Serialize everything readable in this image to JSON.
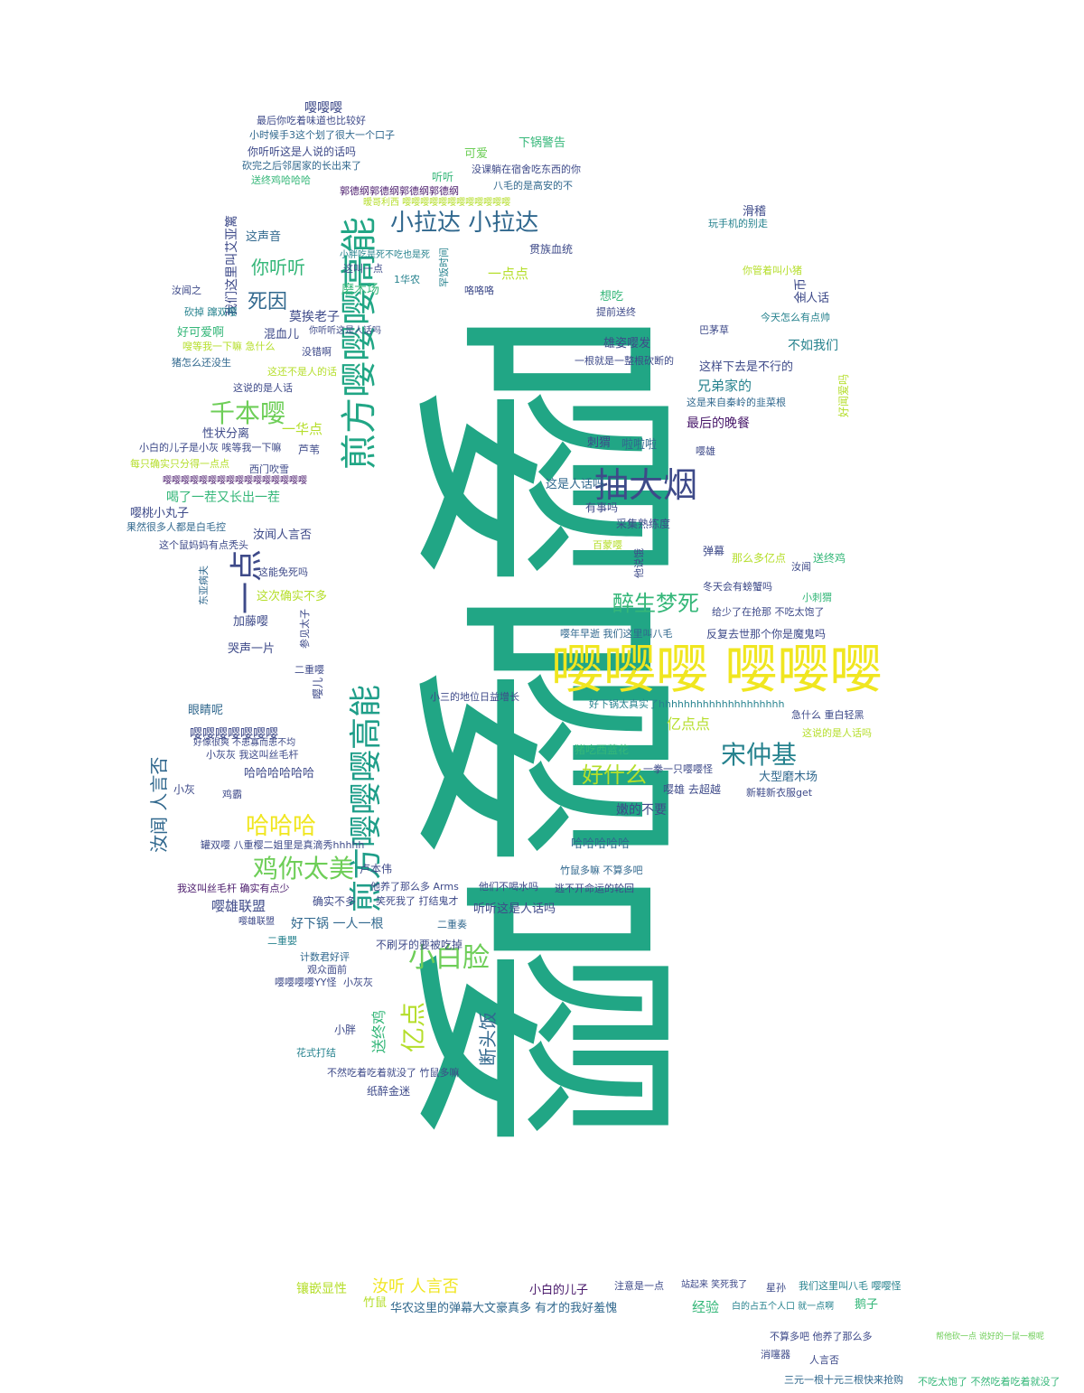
{
  "colors": {
    "background": "#ffffff",
    "palette": [
      "#21a685",
      "#f0e620",
      "#48186a",
      "#31688e",
      "#6ece58",
      "#3e4a89",
      "#b5de2b",
      "#26828e",
      "#1f9e89",
      "#35b779"
    ]
  },
  "wordcloud": {
    "words": [
      {
        "text": "嘤嘤嘤",
        "color": "#21a685"
      },
      {
        "text": "嘤嘤嘤 嘤嘤嘤",
        "color": "#f0e620"
      },
      {
        "text": "煎方嘤嘤嘤高能",
        "color": "#21a685"
      },
      {
        "text": "煎方嘤嘤嘤高能",
        "color": "#1f9e89"
      },
      {
        "text": "抽大烟",
        "color": "#3e4a89"
      },
      {
        "text": "一点",
        "color": "#3e4a89"
      },
      {
        "text": "小拉达 小拉达",
        "color": "#31688e"
      },
      {
        "text": "千本嘤",
        "color": "#6ece58"
      },
      {
        "text": "鸡你太美",
        "color": "#6ece58"
      },
      {
        "text": "小白脸",
        "color": "#6ece58"
      },
      {
        "text": "亿点",
        "color": "#b5de2b"
      },
      {
        "text": "宋仲基",
        "color": "#26828e"
      },
      {
        "text": "哈哈哈",
        "color": "#f0e620"
      },
      {
        "text": "醉生梦死",
        "color": "#35b779"
      },
      {
        "text": "好什么",
        "color": "#b5de2b"
      },
      {
        "text": "死因",
        "color": "#31688e"
      },
      {
        "text": "你听听",
        "color": "#35b779"
      },
      {
        "text": "汝闻 人言否",
        "color": "#31688e"
      },
      {
        "text": "断头饭",
        "color": "#31688e"
      },
      {
        "text": "嘤嘤嘤",
        "color": "#3e4a89"
      },
      {
        "text": "最后你吃着味道也比较好",
        "color": "#3e4a89"
      },
      {
        "text": "小时候手3这个划了很大一个口子",
        "color": "#31688e"
      },
      {
        "text": "你听听这是人说的话吗",
        "color": "#3e4a89"
      },
      {
        "text": "砍完之后邻居家的长出来了",
        "color": "#31688e"
      },
      {
        "text": "送终鸡哈哈哈",
        "color": "#35b779"
      },
      {
        "text": "可爱",
        "color": "#6ece58"
      },
      {
        "text": "下锅警告",
        "color": "#35b779"
      },
      {
        "text": "没课躺在宿舍吃东西的你",
        "color": "#3e4a89"
      },
      {
        "text": "八毛的是高安的不",
        "color": "#31688e"
      },
      {
        "text": "郭德纲郭德纲郭德纲郭德纲",
        "color": "#48186a"
      },
      {
        "text": "听听",
        "color": "#35b779"
      },
      {
        "text": "暧哥利西 嘤嘤嘤嘤嘤嘤嘤嘤嘤嘤嘤嘤",
        "color": "#b5de2b"
      },
      {
        "text": "滑稽",
        "color": "#3e4a89"
      },
      {
        "text": "玩手机的别走",
        "color": "#26828e"
      },
      {
        "text": "我们这里叫艾亚篱",
        "color": "#3e4a89"
      },
      {
        "text": "这声音",
        "color": "#31688e"
      },
      {
        "text": "这叫一点",
        "color": "#3e4a89"
      },
      {
        "text": "贯族血统",
        "color": "#3e4a89"
      },
      {
        "text": "一点点",
        "color": "#b5de2b"
      },
      {
        "text": "磨木场",
        "color": "#35b779"
      },
      {
        "text": "小胖吃是死不吃也是死",
        "color": "#26828e"
      },
      {
        "text": "1华农",
        "color": "#26828e"
      },
      {
        "text": "罕饭时间",
        "color": "#26828e"
      },
      {
        "text": "咯咯咯",
        "color": "#3e4a89"
      },
      {
        "text": "汝闻之",
        "color": "#3e4a89"
      },
      {
        "text": "想吃",
        "color": "#35b779"
      },
      {
        "text": "你管着叫小猪",
        "color": "#b5de2b"
      },
      {
        "text": "金币",
        "color": "#3e4a89"
      },
      {
        "text": "人话",
        "color": "#3e4a89"
      },
      {
        "text": "提前送终",
        "color": "#3e4a89"
      },
      {
        "text": "砍掉 蹿双嘤",
        "color": "#26828e"
      },
      {
        "text": "莫挨老子",
        "color": "#3e4a89"
      },
      {
        "text": "好可爱啊",
        "color": "#35b779"
      },
      {
        "text": "混血儿",
        "color": "#3e4a89"
      },
      {
        "text": "巴茅草",
        "color": "#3e4a89"
      },
      {
        "text": "今天怎么有点帅",
        "color": "#26828e"
      },
      {
        "text": "嗖等我一下嘛 急什么",
        "color": "#b5de2b"
      },
      {
        "text": "你听听这是人话吗",
        "color": "#3e4a89"
      },
      {
        "text": "雄姿嘤发",
        "color": "#3e4a89"
      },
      {
        "text": "不如我们",
        "color": "#26828e"
      },
      {
        "text": "猪怎么还没生",
        "color": "#31688e"
      },
      {
        "text": "没错啊",
        "color": "#3e4a89"
      },
      {
        "text": "这还不是人的话",
        "color": "#b5de2b"
      },
      {
        "text": "这样下去是不行的",
        "color": "#3e4a89"
      },
      {
        "text": "这说的是人话",
        "color": "#3e4a89"
      },
      {
        "text": "一根就是一整根砍断的",
        "color": "#3e4a89"
      },
      {
        "text": "兄弟家的",
        "color": "#26828e"
      },
      {
        "text": "好闻爱吗",
        "color": "#b5de2b"
      },
      {
        "text": "这是来自秦岭的韭菜根",
        "color": "#31688e"
      },
      {
        "text": "性状分离",
        "color": "#3e4a89"
      },
      {
        "text": "一华点",
        "color": "#b5de2b"
      },
      {
        "text": "最后的晚餐",
        "color": "#48186a"
      },
      {
        "text": "小白的儿子是小灰 唉等我一下嘛",
        "color": "#3e4a89"
      },
      {
        "text": "芦苇",
        "color": "#3e4a89"
      },
      {
        "text": "刺猬",
        "color": "#3e4a89"
      },
      {
        "text": "啦啦啦",
        "color": "#31688e"
      },
      {
        "text": "每只确实只分得一点点",
        "color": "#b5de2b"
      },
      {
        "text": "嘤雄",
        "color": "#3e4a89"
      },
      {
        "text": "西门吹雪",
        "color": "#3e4a89"
      },
      {
        "text": "嘤嘤嘤嘤嘤嘤嘤嘤嘤嘤嘤嘤嘤嘤嘤嘤",
        "color": "#48186a"
      },
      {
        "text": "这是人话吗",
        "color": "#31688e"
      },
      {
        "text": "喝了一茬又长出一茬",
        "color": "#35b779"
      },
      {
        "text": "嘤桃小丸子",
        "color": "#3e4a89"
      },
      {
        "text": "有事吗",
        "color": "#3e4a89"
      },
      {
        "text": "采集熟练度",
        "color": "#3e4a89"
      },
      {
        "text": "果然很多人都是白毛控",
        "color": "#31688e"
      },
      {
        "text": "汝闻人言否",
        "color": "#3e4a89"
      },
      {
        "text": "这个鼠妈妈有点秃头",
        "color": "#3e4a89"
      },
      {
        "text": "百蒙嘤",
        "color": "#b5de2b"
      },
      {
        "text": "弹幕",
        "color": "#3e4a89"
      },
      {
        "text": "那么多亿点",
        "color": "#b5de2b"
      },
      {
        "text": "送终鸡",
        "color": "#35b779"
      },
      {
        "text": "汝闻",
        "color": "#3e4a89"
      },
      {
        "text": "东亚病夫",
        "color": "#31688e"
      },
      {
        "text": "这次确实不多",
        "color": "#b5de2b"
      },
      {
        "text": "这能免死吗",
        "color": "#3e4a89"
      },
      {
        "text": "他说饿",
        "color": "#3e4a89"
      },
      {
        "text": "冬天会有螃蟹吗",
        "color": "#3e4a89"
      },
      {
        "text": "小刺猬",
        "color": "#35b779"
      },
      {
        "text": "加藤嘤",
        "color": "#3e4a89"
      },
      {
        "text": "参见太子",
        "color": "#3e4a89"
      },
      {
        "text": "给少了在抢那 不吃太饱了",
        "color": "#3e4a89"
      },
      {
        "text": "嘤年早逝 我们这里叫八毛",
        "color": "#31688e"
      },
      {
        "text": "反复去世那个你是魔鬼吗",
        "color": "#3e4a89"
      },
      {
        "text": "哭声一片",
        "color": "#3e4a89"
      },
      {
        "text": "二重嘤",
        "color": "#3e4a89"
      },
      {
        "text": "嘤儿",
        "color": "#3e4a89"
      },
      {
        "text": "小三的地位日益增长",
        "color": "#3e4a89"
      },
      {
        "text": "眼睛呢",
        "color": "#31688e"
      },
      {
        "text": "好下锅太真实了hhhhhhhhhhhhhhhhhhhh",
        "color": "#26828e"
      },
      {
        "text": "急什么 重白轻黑",
        "color": "#3e4a89"
      },
      {
        "text": "亿点点",
        "color": "#b5de2b"
      },
      {
        "text": "这说的是人话吗",
        "color": "#b5de2b"
      },
      {
        "text": "嘤嘤嘤嘤嘤嘤嘤",
        "color": "#3e4a89"
      },
      {
        "text": "好像很爽 不患寡而患不均",
        "color": "#3e4a89"
      },
      {
        "text": "小灰灰 我这叫丝毛杆",
        "color": "#3e4a89"
      },
      {
        "text": "猪吃西蓝花",
        "color": "#35b779"
      },
      {
        "text": "大型磨木场",
        "color": "#31688e"
      },
      {
        "text": "哈哈哈哈哈哈",
        "color": "#3e4a89"
      },
      {
        "text": "小灰",
        "color": "#3e4a89"
      },
      {
        "text": "一拳一只嘤嘤怪",
        "color": "#3e4a89"
      },
      {
        "text": "新鞋新衣服get",
        "color": "#3e4a89"
      },
      {
        "text": "鸡霸",
        "color": "#3e4a89"
      },
      {
        "text": "嘤雄 去超越",
        "color": "#3e4a89"
      },
      {
        "text": "嫩的不要",
        "color": "#3e4a89"
      },
      {
        "text": "哈哈哈哈哈",
        "color": "#31688e"
      },
      {
        "text": "罐双嘤 八重樱二姐里是真滴秀hhhhh",
        "color": "#3e4a89"
      },
      {
        "text": "卢本伟",
        "color": "#3e4a89"
      },
      {
        "text": "竹鼠多嘛 不算多吧",
        "color": "#31688e"
      },
      {
        "text": "我这叫丝毛杆 确实有点少",
        "color": "#48186a"
      },
      {
        "text": "他养了那么多 Arms",
        "color": "#3e4a89"
      },
      {
        "text": "他们不喝水吗",
        "color": "#3e4a89"
      },
      {
        "text": "逃不开命运的轮回",
        "color": "#3e4a89"
      },
      {
        "text": "嘤雄联盟",
        "color": "#3e4a89"
      },
      {
        "text": "确实不多",
        "color": "#3e4a89"
      },
      {
        "text": "笑死我了 打结鬼才",
        "color": "#3e4a89"
      },
      {
        "text": "听听这是人话吗",
        "color": "#3e4a89"
      },
      {
        "text": "好下锅 一人一根",
        "color": "#31688e"
      },
      {
        "text": "二重奏",
        "color": "#31688e"
      },
      {
        "text": "二重嬰",
        "color": "#26828e"
      },
      {
        "text": "不刷牙的要被吃掉",
        "color": "#3e4a89"
      },
      {
        "text": "计数君好评",
        "color": "#31688e"
      },
      {
        "text": "观众面前",
        "color": "#3e4a89"
      },
      {
        "text": "嘤嘤嘤嘤YY怪",
        "color": "#3e4a89"
      },
      {
        "text": "小灰灰",
        "color": "#3e4a89"
      },
      {
        "text": "小胖",
        "color": "#3e4a89"
      },
      {
        "text": "送终鸡",
        "color": "#35b779"
      },
      {
        "text": "花式打结",
        "color": "#26828e"
      },
      {
        "text": "不然吃着吃着就没了 竹鼠多嘛",
        "color": "#3e4a89"
      },
      {
        "text": "纸醉金迷",
        "color": "#3e4a89"
      },
      {
        "text": "镶嵌显性",
        "color": "#b5de2b"
      },
      {
        "text": "竹鼠",
        "color": "#b5de2b"
      },
      {
        "text": "汝听 人言否",
        "color": "#f0e620"
      },
      {
        "text": "小白的儿子",
        "color": "#48186a"
      },
      {
        "text": "华农这里的弹幕大文豪真多 有才的我好羞愧",
        "color": "#31688e"
      },
      {
        "text": "注意是一点",
        "color": "#3e4a89"
      },
      {
        "text": "站起来 笑死我了",
        "color": "#3e4a89"
      },
      {
        "text": "星孙",
        "color": "#3e4a89"
      },
      {
        "text": "我们这里叫八毛 嘤嘤怪",
        "color": "#26828e"
      },
      {
        "text": "经验",
        "color": "#35b779"
      },
      {
        "text": "白的占五个人口 就一点啊",
        "color": "#26828e"
      },
      {
        "text": "鹅子",
        "color": "#35b779"
      },
      {
        "text": "不算多吧 他养了那么多",
        "color": "#3e4a89"
      },
      {
        "text": "消噻器",
        "color": "#3e4a89"
      },
      {
        "text": "人言否",
        "color": "#3e4a89"
      },
      {
        "text": "三元一根十元三根快来抢购",
        "color": "#31688e"
      },
      {
        "text": "不吃太饱了 不然吃着吃着就没了",
        "color": "#35b779"
      },
      {
        "text": "帮他砍一点 说好的一鼠一根呢",
        "color": "#6ece58"
      },
      {
        "text": "嘤雄联盟",
        "color": "#3e4a89"
      }
    ]
  }
}
